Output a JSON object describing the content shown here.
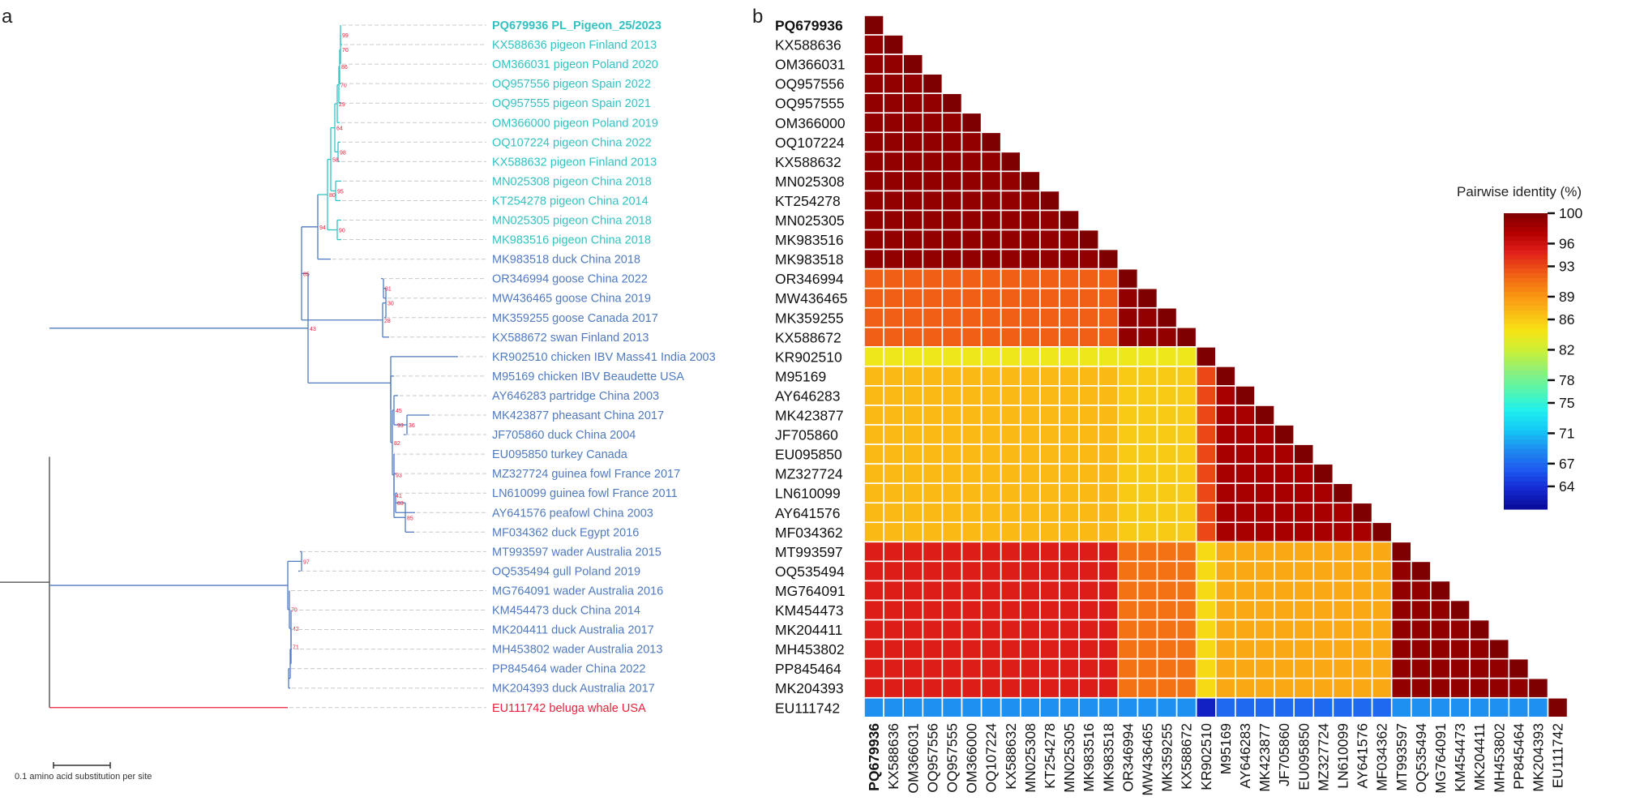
{
  "chart_data": [
    {
      "type": "phylogenetic-tree",
      "panel_label": "a",
      "scale_bar_label": "0.1 amino acid substitution per site",
      "leaves": [
        {
          "label": "PQ679936 PL_Pigeon_25/2023",
          "group": "pigeon",
          "bold": true
        },
        {
          "label": "KX588636 pigeon Finland 2013",
          "group": "pigeon"
        },
        {
          "label": "OM366031 pigeon Poland 2020",
          "group": "pigeon"
        },
        {
          "label": "OQ957556 pigeon Spain 2022",
          "group": "pigeon"
        },
        {
          "label": "OQ957555 pigeon Spain 2021",
          "group": "pigeon"
        },
        {
          "label": "OM366000 pigeon Poland 2019",
          "group": "pigeon"
        },
        {
          "label": "OQ107224 pigeon China 2022",
          "group": "pigeon"
        },
        {
          "label": "KX588632 pigeon Finland 2013",
          "group": "pigeon"
        },
        {
          "label": "MN025308 pigeon China 2018",
          "group": "pigeon"
        },
        {
          "label": "KT254278 pigeon China 2014",
          "group": "pigeon"
        },
        {
          "label": "MN025305 pigeon China 2018",
          "group": "pigeon"
        },
        {
          "label": "MK983516 pigeon China 2018",
          "group": "pigeon"
        },
        {
          "label": "MK983518 duck China 2018",
          "group": "avian"
        },
        {
          "label": "OR346994 goose China 2022",
          "group": "avian"
        },
        {
          "label": "MW436465 goose China 2019",
          "group": "avian"
        },
        {
          "label": "MK359255 goose Canada 2017",
          "group": "avian"
        },
        {
          "label": "KX588672 swan Finland 2013",
          "group": "avian"
        },
        {
          "label": "KR902510 chicken IBV Mass41 India 2003",
          "group": "avian"
        },
        {
          "label": "M95169 chicken IBV Beaudette USA",
          "group": "avian"
        },
        {
          "label": "AY646283 partridge China 2003",
          "group": "avian"
        },
        {
          "label": "MK423877 pheasant China 2017",
          "group": "avian"
        },
        {
          "label": "JF705860 duck China 2004",
          "group": "avian"
        },
        {
          "label": "EU095850 turkey Canada",
          "group": "avian"
        },
        {
          "label": "MZ327724 guinea fowl France 2017",
          "group": "avian"
        },
        {
          "label": "LN610099 guinea fowl France 2011",
          "group": "avian"
        },
        {
          "label": "AY641576 peafowl China 2003",
          "group": "avian"
        },
        {
          "label": "MF034362 duck Egypt 2016",
          "group": "avian"
        },
        {
          "label": "MT993597 wader Australia 2015",
          "group": "avian"
        },
        {
          "label": "OQ535494 gull Poland 2019",
          "group": "avian"
        },
        {
          "label": "MG764091 wader Australia 2016",
          "group": "avian"
        },
        {
          "label": "KM454473 duck China 2014",
          "group": "avian"
        },
        {
          "label": "MK204411 duck Australia 2017",
          "group": "avian"
        },
        {
          "label": "MH453802 wader Australia 2013",
          "group": "avian"
        },
        {
          "label": "PP845464 wader China 2022",
          "group": "avian"
        },
        {
          "label": "MK204393 duck Australia 2017",
          "group": "avian"
        },
        {
          "label": "EU111742 beluga whale USA",
          "group": "outgroup"
        }
      ],
      "bootstrap_values": [
        "99",
        "70",
        "86",
        "70",
        "29",
        "98",
        "64",
        "95",
        "58",
        "90",
        "80",
        "94",
        "85",
        "81",
        "30",
        "28",
        "43",
        "36",
        "93",
        "45",
        "41",
        "93",
        "83",
        "85",
        "82",
        "97",
        "70",
        "42",
        "71"
      ],
      "group_colors": {
        "pigeon": "#33c2c2",
        "avian": "#4f7ac0",
        "outgroup": "#e8203a",
        "root": "#444444"
      }
    },
    {
      "type": "heatmap",
      "panel_label": "b",
      "title": "Pairwise identity (%)",
      "labels": [
        "PQ679936",
        "KX588636",
        "OM366031",
        "OQ957556",
        "OQ957555",
        "OM366000",
        "OQ107224",
        "KX588632",
        "MN025308",
        "KT254278",
        "MN025305",
        "MK983516",
        "MK983518",
        "OR346994",
        "MW436465",
        "MK359255",
        "KX588672",
        "KR902510",
        "M95169",
        "AY646283",
        "MK423877",
        "JF705860",
        "EU095850",
        "MZ327724",
        "LN610099",
        "AY641576",
        "MF034362",
        "MT993597",
        "OQ535494",
        "MG764091",
        "KM454473",
        "MK204411",
        "MH453802",
        "PP845464",
        "MK204393",
        "EU111742"
      ],
      "bold_label": "PQ679936",
      "groups": [
        "P",
        "P",
        "P",
        "P",
        "P",
        "P",
        "P",
        "P",
        "P",
        "P",
        "P",
        "P",
        "P",
        "G",
        "G",
        "G",
        "G",
        "K",
        "M",
        "M",
        "M",
        "M",
        "M",
        "M",
        "M",
        "M",
        "M",
        "A",
        "A",
        "A",
        "A",
        "A",
        "A",
        "A",
        "A",
        "W"
      ],
      "group_identity": {
        "P": {
          "P": 99,
          "G": 92,
          "K": 84,
          "M": 87,
          "A": 95,
          "W": 69
        },
        "G": {
          "P": 92,
          "G": 99,
          "K": 84,
          "M": 86,
          "A": 91,
          "W": 69
        },
        "K": {
          "P": 84,
          "G": 84,
          "K": 100,
          "M": 93,
          "A": 85,
          "W": 63
        },
        "M": {
          "P": 87,
          "G": 86,
          "K": 93,
          "M": 98,
          "A": 88,
          "W": 67
        },
        "A": {
          "P": 95,
          "G": 91,
          "K": 85,
          "M": 88,
          "A": 99,
          "W": 69
        },
        "W": {
          "P": 69,
          "G": 69,
          "K": 63,
          "M": 67,
          "A": 69,
          "W": 100
        }
      },
      "colorbar_ticks": [
        100,
        96,
        93,
        89,
        86,
        82,
        78,
        75,
        71,
        67,
        64
      ],
      "color_range": [
        61,
        100
      ],
      "colorscale": [
        "#7f0000",
        "#b40000",
        "#e0201a",
        "#f05a16",
        "#f88c12",
        "#fbb915",
        "#f5e514",
        "#c8f038",
        "#8ef07a",
        "#54f5b0",
        "#1ff0ee",
        "#14c8f5",
        "#1f8cf0",
        "#1e5af0",
        "#1428d2",
        "#0a0a96"
      ]
    }
  ]
}
